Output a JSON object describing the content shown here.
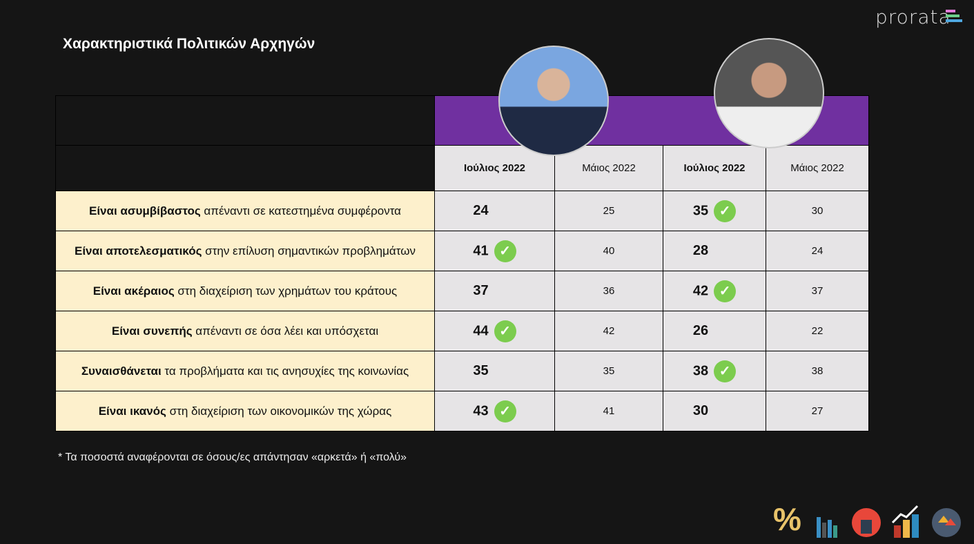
{
  "title": "Χαρακτηριστικά Πολιτικών Αρχηγών",
  "logo": "prorata",
  "colors": {
    "purple": "#7030a0",
    "check": "#7ccc4e",
    "label_bg": "#fdf0cc",
    "cell_bg": "#e6e4e6"
  },
  "columns": [
    "Ιούλιος 2022",
    "Μάιος 2022",
    "Ιούλιος 2022",
    "Μάιος 2022"
  ],
  "rows": [
    {
      "bold": "Είναι ασυμβίβαστος",
      "rest": " απέναντι σε κατεστημένα συμφέροντα",
      "a_jul": "24",
      "a_may": "25",
      "b_jul": "35",
      "b_may": "30",
      "check": "b"
    },
    {
      "bold": "Είναι αποτελεσματικός",
      "rest": " στην επίλυση σημαντικών προβλημάτων",
      "a_jul": "41",
      "a_may": "40",
      "b_jul": "28",
      "b_may": "24",
      "check": "a"
    },
    {
      "bold": "Είναι ακέραιος",
      "rest": " στη διαχείριση των χρημάτων του κράτους",
      "a_jul": "37",
      "a_may": "36",
      "b_jul": "42",
      "b_may": "37",
      "check": "b"
    },
    {
      "bold": "Είναι συνεπής",
      "rest": " απέναντι σε όσα λέει και υπόσχεται",
      "a_jul": "44",
      "a_may": "42",
      "b_jul": "26",
      "b_may": "22",
      "check": "a"
    },
    {
      "bold": "Συναισθάνεται",
      "rest": " τα προβλήματα και τις ανησυχίες της κοινωνίας",
      "a_jul": "35",
      "a_may": "35",
      "b_jul": "38",
      "b_may": "38",
      "check": "b"
    },
    {
      "bold": "Είναι ικανός",
      "rest": " στη διαχείριση των οικονομικών της χώρας",
      "a_jul": "43",
      "a_may": "41",
      "b_jul": "30",
      "b_may": "27",
      "check": "a"
    }
  ],
  "note": "* Τα ποσοστά αναφέρονται σε όσους/ες απάντησαν «αρκετά» ή «πολύ»",
  "footer_icons": [
    "percent-icon",
    "bar-chart-icon",
    "podium-icon",
    "growth-chart-icon",
    "houses-icon"
  ]
}
